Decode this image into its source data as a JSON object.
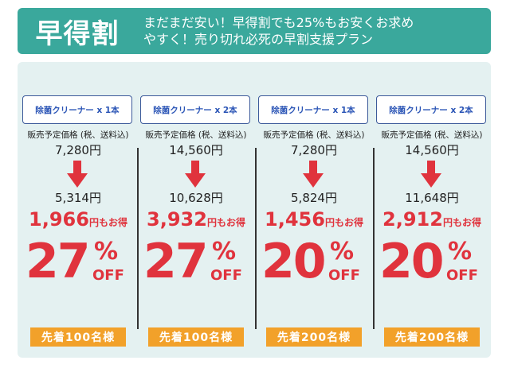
{
  "header": {
    "title": "早得割",
    "subtitle_line1": "まだまだ安い！早得割でも25%もお安くお求め",
    "subtitle_line2": "やすく！売り切れ必死の早割支援プラン"
  },
  "price_label": "販売予定価格 (税、送料込)",
  "saving_suffix": "円もお得",
  "yen": "円",
  "off": "OFF",
  "percent": "%",
  "colors": {
    "header": "#3aa89c",
    "panel": "#e4f1f1",
    "accent_red": "#e0333d",
    "badge": "#f2a12a",
    "product_text": "#2b55b6"
  },
  "plans": [
    {
      "product": "除菌クリーナー x 1本",
      "price_before": "7,280円",
      "price_after": "5,314円",
      "saving": "1,966",
      "discount": "27",
      "limit": "先着100名様"
    },
    {
      "product": "除菌クリーナー x 2本",
      "price_before": "14,560円",
      "price_after": "10,628円",
      "saving": "3,932",
      "discount": "27",
      "limit": "先着100名様"
    },
    {
      "product": "除菌クリーナー x 1本",
      "price_before": "7,280円",
      "price_after": "5,824円",
      "saving": "1,456",
      "discount": "20",
      "limit": "先着200名様"
    },
    {
      "product": "除菌クリーナー x 2本",
      "price_before": "14,560円",
      "price_after": "11,648円",
      "saving": "2,912",
      "discount": "20",
      "limit": "先着200名様"
    }
  ]
}
